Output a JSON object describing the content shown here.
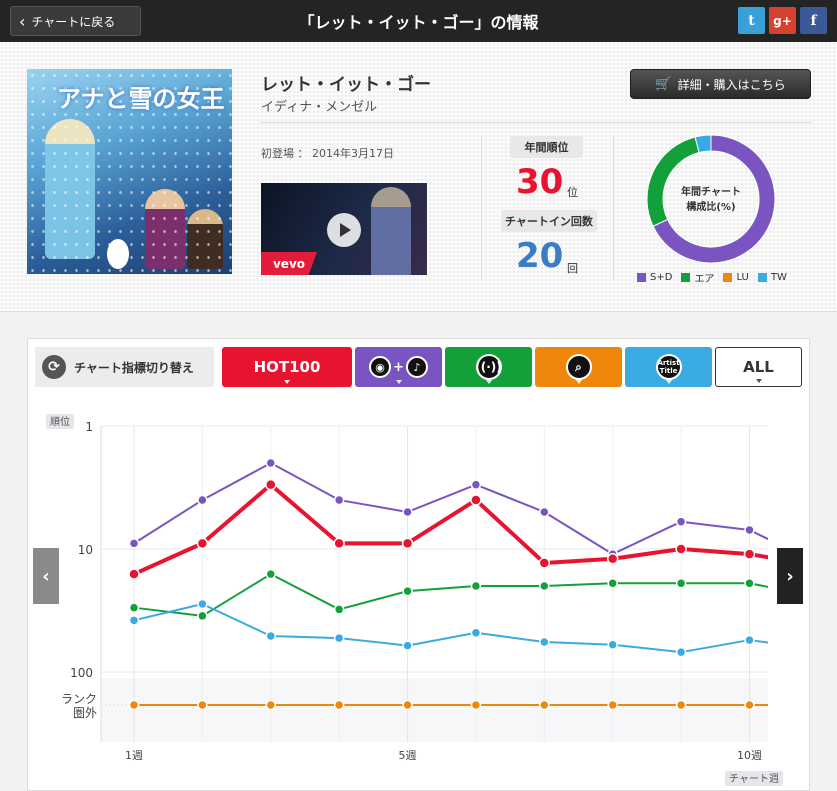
{
  "topbar": {
    "back_label": "チャートに戻る",
    "title": "「レット・イット・ゴー」の情報",
    "share": {
      "twitter": "t",
      "googleplus": "g+",
      "facebook": "f"
    }
  },
  "song": {
    "title": "レット・イット・ゴー",
    "artist": "イディナ・メンゼル",
    "buy_label": "詳細・購入はこちら",
    "first_appearance_label": "初登場",
    "first_appearance_date": "2014年3月17日",
    "cover_title": "アナと雪の女王",
    "video_brand": "vevo"
  },
  "stats": {
    "annual_rank_label": "年間順位",
    "annual_rank": "30",
    "annual_rank_unit": "位",
    "chart_in_label": "チャートイン回数",
    "chart_in_count": "20",
    "chart_in_unit": "回"
  },
  "composition": {
    "center_label_1": "年間チャート",
    "center_label_2": "構成比(%)",
    "segments": [
      {
        "name": "S+D",
        "value": 68,
        "color": "#7a55c1"
      },
      {
        "name": "エア",
        "value": 28,
        "color": "#13a03a"
      },
      {
        "name": "LU",
        "value": 0,
        "color": "#f0870d"
      },
      {
        "name": "TW",
        "value": 4,
        "color": "#3aabe0"
      }
    ]
  },
  "switcher": {
    "label": "チャート指標切り替え",
    "tabs": [
      {
        "label": "HOT100",
        "color": "#e8132e"
      },
      {
        "label": "",
        "icon": "sales-download-icon",
        "color": "#7a55c1"
      },
      {
        "label": "",
        "icon": "radio-airplay-icon",
        "color": "#13a03a"
      },
      {
        "label": "",
        "icon": "lookup-search-icon",
        "color": "#f0870d"
      },
      {
        "label": "",
        "icon": "twitter-artist-icon",
        "color": "#3aabe0"
      },
      {
        "label": "ALL",
        "color": "#ffffff"
      }
    ],
    "icon_text": {
      "tw": "Artist\nTitle"
    }
  },
  "chart_data": {
    "type": "line",
    "ylabel": "順位",
    "xlabel": "チャート週",
    "y_scale": "log-rank",
    "y_ticks": [
      "1",
      "10",
      "100"
    ],
    "y_outside_label": "ランク\n圏外",
    "x_ticks": [
      {
        "x": 1,
        "label": "1週"
      },
      {
        "x": 5,
        "label": "5週"
      },
      {
        "x": 10,
        "label": "10週"
      }
    ],
    "x": [
      1,
      2,
      3,
      4,
      5,
      6,
      7,
      8,
      9,
      10,
      10.4
    ],
    "series": [
      {
        "name": "S+D",
        "color": "#7a55c1",
        "values": [
          9,
          4,
          2,
          4,
          5,
          3,
          5,
          11,
          6,
          7,
          9
        ]
      },
      {
        "name": "HOT100",
        "color": "#e8132e",
        "values": [
          16,
          9,
          3,
          9,
          9,
          4,
          13,
          12,
          10,
          11,
          12
        ]
      },
      {
        "name": "エア",
        "color": "#13a03a",
        "values": [
          30,
          35,
          16,
          31,
          22,
          20,
          20,
          19,
          19,
          19,
          21
        ]
      },
      {
        "name": "TW",
        "color": "#3aabe0",
        "values": [
          38,
          28,
          51,
          53,
          61,
          48,
          57,
          60,
          69,
          55,
          59
        ]
      },
      {
        "name": "LU",
        "color": "#f0870d",
        "values": [
          "圏外",
          "圏外",
          "圏外",
          "圏外",
          "圏外",
          "圏外",
          "圏外",
          "圏外",
          "圏外",
          "圏外",
          "圏外"
        ]
      }
    ]
  }
}
